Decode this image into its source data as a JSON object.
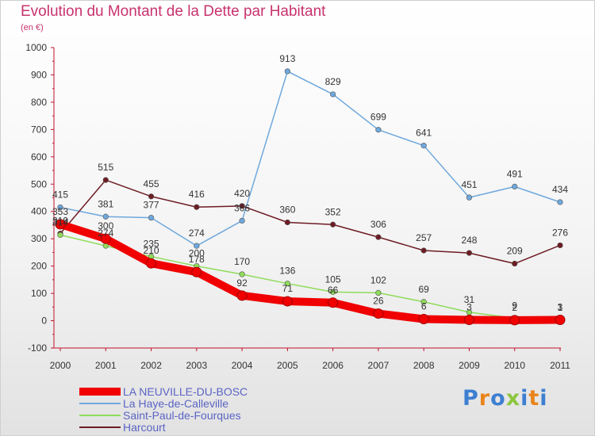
{
  "chart_data": {
    "type": "line",
    "title": "Evolution du Montant de la Dette par Habitant",
    "unit_label": "(en €)",
    "xlabel": "",
    "ylabel": "",
    "x": [
      2000,
      2001,
      2002,
      2003,
      2004,
      2005,
      2006,
      2007,
      2008,
      2009,
      2010,
      2011
    ],
    "y_ticks": [
      -100,
      0,
      100,
      200,
      300,
      400,
      500,
      600,
      700,
      800,
      900,
      1000
    ],
    "ylim": [
      -100,
      1000
    ],
    "grid": false,
    "legend_position": "bottom-left",
    "series": [
      {
        "name": "La Haye-de-Calleville",
        "color": "#6fa8dc",
        "values": [
          415,
          381,
          377,
          274,
          366,
          913,
          829,
          699,
          641,
          451,
          491,
          434
        ]
      },
      {
        "name": "Harcourt",
        "color": "#6e1c24",
        "values": [
          319,
          515,
          455,
          416,
          420,
          360,
          352,
          306,
          257,
          248,
          209,
          276
        ]
      },
      {
        "name": "Saint-Paul-de-Fourques",
        "color": "#8fdc5a",
        "values": [
          314,
          274,
          235,
          200,
          170,
          136,
          105,
          102,
          69,
          31,
          9,
          1
        ]
      },
      {
        "name": "LA NEUVILLE-DU-BOSC",
        "color": "#f00000",
        "values": [
          353,
          300,
          210,
          178,
          92,
          71,
          66,
          26,
          6,
          3,
          2,
          3
        ]
      }
    ],
    "legend": [
      "LA NEUVILLE-DU-BOSC",
      "La Haye-de-Calleville",
      "Saint-Paul-de-Fourques",
      "Harcourt"
    ]
  },
  "logo": {
    "text": "Proxiti",
    "letter_colors": [
      "#3d7fd1",
      "#e8841c",
      "#3d7fd1",
      "#8cc63f",
      "#3d7fd1",
      "#e8841c",
      "#3d7fd1"
    ]
  }
}
